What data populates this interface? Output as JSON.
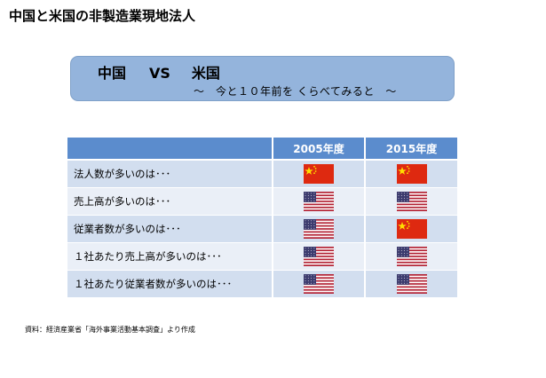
{
  "title": "中国と米国の非製造業現地法人",
  "banner": {
    "left": "中国",
    "vs": "VS",
    "right": "米国",
    "subtitle": "～　今と１０年前を くらべてみると　～"
  },
  "table": {
    "headers": [
      "",
      "2005年度",
      "2015年度"
    ],
    "rows": [
      {
        "label": "法人数が多いのは･･･",
        "y2005": "china-flag-icon",
        "y2015": "china-flag-icon"
      },
      {
        "label": "売上高が多いのは･･･",
        "y2005": "usa-flag-icon",
        "y2015": "usa-flag-icon"
      },
      {
        "label": "従業者数が多いのは･･･",
        "y2005": "usa-flag-icon",
        "y2015": "china-flag-icon"
      },
      {
        "label": "１社あたり売上高が多いのは･･･",
        "y2005": "usa-flag-icon",
        "y2015": "usa-flag-icon"
      },
      {
        "label": "１社あたり従業者数が多いのは･･･",
        "y2005": "usa-flag-icon",
        "y2015": "usa-flag-icon"
      }
    ]
  },
  "footnote": "資料：経済産業省「海外事業活動基本調査」より作成",
  "colors": {
    "banner_bg": "#94b4dc",
    "table_header": "#5b8ccd",
    "row_odd": "#d2deef",
    "row_even": "#eaeff7",
    "china_red": "#de2910",
    "china_star": "#ffde00",
    "usa_red": "#b22234",
    "usa_blue": "#3c3b6e"
  }
}
